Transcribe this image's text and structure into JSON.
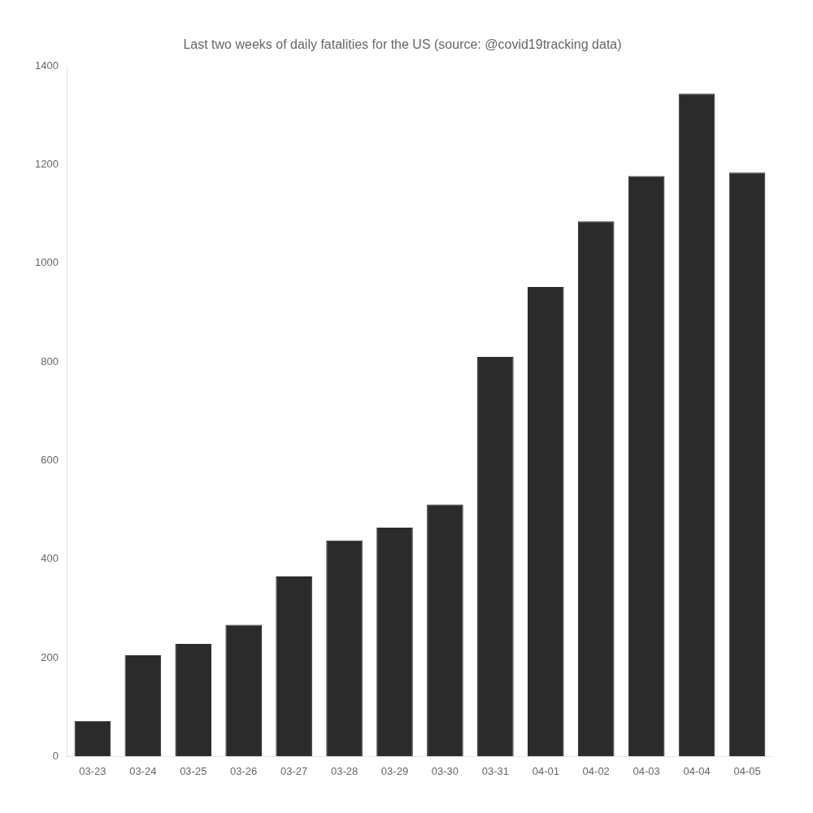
{
  "chart_data": {
    "type": "bar",
    "title": "Last two weeks of daily fatalities for the US (source: @covid19tracking data)",
    "categories": [
      "03-23",
      "03-24",
      "03-25",
      "03-26",
      "03-27",
      "03-28",
      "03-29",
      "03-30",
      "03-31",
      "04-01",
      "04-02",
      "04-03",
      "04-04",
      "04-05"
    ],
    "values": [
      72,
      205,
      228,
      267,
      365,
      438,
      464,
      511,
      810,
      952,
      1085,
      1177,
      1344,
      1184
    ],
    "color": "#2b2b2b",
    "ylim": [
      0,
      1400
    ],
    "yticks": [
      0,
      200,
      400,
      600,
      800,
      1000,
      1200,
      1400
    ],
    "grid": false
  }
}
